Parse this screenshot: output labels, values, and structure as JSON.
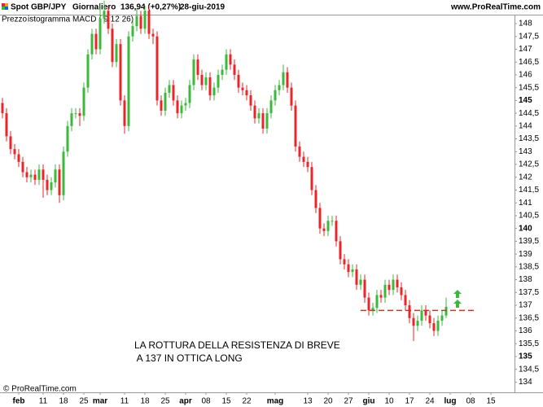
{
  "chart_data": {
    "type": "candlestick",
    "title": "Spot GBP/JPY",
    "timeframe": "Giornaliero",
    "last_price": "136,94 (+0,27%)",
    "date": "28-giu-2019",
    "source": "www.ProRealTime.com",
    "legend": [
      "Prezzo",
      "istogramma MACD ( 9 12 26)"
    ],
    "copyright": "© ProRealTime.com",
    "annotations": [
      "LA ROTTURA DELLA RESISTENZA DI BREVE",
      " A 137 IN OTTICA LONG"
    ],
    "up_color": "#3cb83c",
    "down_color": "#e8252a",
    "resistance": {
      "value": 136.8,
      "color": "#e8252a"
    },
    "xlim": [
      -0.6,
      125.8
    ],
    "xticks": [
      {
        "value": 4,
        "label": "feb"
      },
      {
        "value": 10,
        "label": "11"
      },
      {
        "value": 15,
        "label": "18"
      },
      {
        "value": 20,
        "label": "25"
      },
      {
        "value": 24,
        "label": "mar"
      },
      {
        "value": 30,
        "label": "11"
      },
      {
        "value": 35,
        "label": "18"
      },
      {
        "value": 40,
        "label": "25"
      },
      {
        "value": 45,
        "label": "apr"
      },
      {
        "value": 50,
        "label": "08"
      },
      {
        "value": 55,
        "label": "15"
      },
      {
        "value": 60,
        "label": "22"
      },
      {
        "value": 67,
        "label": "mag"
      },
      {
        "value": 75,
        "label": "13"
      },
      {
        "value": 80,
        "label": "20"
      },
      {
        "value": 85,
        "label": "27"
      },
      {
        "value": 90,
        "label": "giu"
      },
      {
        "value": 95,
        "label": "10"
      },
      {
        "value": 100,
        "label": "17"
      },
      {
        "value": 105,
        "label": "24"
      },
      {
        "value": 110,
        "label": "lug"
      },
      {
        "value": 115,
        "label": "08"
      },
      {
        "value": 120,
        "label": "15"
      }
    ],
    "ylim": [
      133.6,
      148.35
    ],
    "yticks": [
      134,
      {
        "value": 134.5,
        "label": "134,5"
      },
      135,
      {
        "value": 135.5,
        "label": "135,5"
      },
      136,
      {
        "value": 136.5,
        "label": "136,5"
      },
      137,
      {
        "value": 137.5,
        "label": "137,5"
      },
      138,
      {
        "value": 138.5,
        "label": "138,5"
      },
      139,
      {
        "value": 139.5,
        "label": "139,5"
      },
      140,
      {
        "value": 140.5,
        "label": "140,5"
      },
      141,
      {
        "value": 141.5,
        "label": "141,5"
      },
      142,
      {
        "value": 142.5,
        "label": "142,5"
      },
      143,
      {
        "value": 143.5,
        "label": "143,5"
      },
      144,
      {
        "value": 144.5,
        "label": "144,5"
      },
      145,
      {
        "value": 145.5,
        "label": "145,5"
      },
      146,
      {
        "value": 146.5,
        "label": "146,5"
      },
      147,
      {
        "value": 147.5,
        "label": "147,5"
      },
      148
    ],
    "open": [
      144.9,
      144.5,
      143.6,
      143.1,
      142.9,
      142.6,
      142.2,
      142.0,
      142.1,
      141.9,
      142.3,
      141.9,
      141.5,
      141.8,
      142.3,
      141.3,
      143.0,
      144.0,
      144.5,
      144.5,
      144.4,
      145.5,
      146.8,
      147.6,
      147.0,
      148.2,
      148.5,
      147.8,
      146.5,
      147.2,
      145.0,
      144.0,
      147.5,
      147.9,
      148.3,
      147.8,
      148.5,
      147.6,
      147.5,
      145.0,
      144.6,
      145.3,
      145.6,
      145.0,
      144.5,
      144.8,
      144.9,
      145.6,
      146.6,
      146.0,
      145.6,
      145.9,
      145.2,
      145.5,
      146.0,
      146.2,
      146.8,
      146.4,
      146.0,
      145.5,
      145.4,
      145.2,
      144.8,
      144.3,
      144.5,
      143.9,
      144.5,
      145.0,
      145.4,
      145.6,
      146.1,
      145.5,
      144.8,
      143.2,
      142.8,
      142.6,
      142.4,
      141.5,
      140.8,
      140.0,
      139.9,
      140.3,
      140.3,
      139.5,
      138.8,
      138.6,
      138.3,
      138.4,
      137.8,
      138.0,
      137.3,
      136.8,
      136.9,
      137.4,
      137.3,
      137.8,
      137.6,
      138.0,
      137.7,
      137.4,
      137.0,
      136.5,
      136.2,
      136.4,
      136.8,
      136.6,
      136.3,
      136.0,
      136.4,
      136.6
    ],
    "high": [
      145.1,
      144.7,
      143.8,
      143.3,
      143.1,
      142.8,
      142.4,
      142.3,
      142.3,
      142.5,
      142.5,
      142.1,
      142.0,
      142.5,
      142.5,
      143.2,
      144.2,
      144.7,
      144.7,
      144.7,
      145.7,
      147.0,
      147.8,
      147.8,
      148.8,
      148.9,
      148.7,
      148.0,
      147.4,
      147.4,
      145.2,
      147.7,
      148.1,
      148.6,
      148.5,
      148.7,
      148.7,
      147.8,
      147.7,
      145.2,
      145.5,
      145.8,
      145.8,
      145.2,
      145.0,
      145.1,
      145.8,
      146.8,
      146.8,
      146.2,
      146.1,
      146.1,
      145.7,
      146.2,
      146.4,
      147.0,
      147.0,
      146.6,
      146.2,
      145.7,
      145.6,
      145.4,
      145.0,
      144.7,
      144.7,
      144.7,
      145.2,
      145.6,
      145.8,
      146.4,
      146.3,
      145.7,
      145.0,
      143.4,
      143.0,
      142.8,
      142.6,
      141.7,
      141.0,
      140.2,
      140.5,
      140.5,
      140.5,
      139.7,
      139.0,
      138.8,
      138.6,
      138.6,
      138.2,
      138.2,
      137.5,
      137.1,
      137.6,
      137.6,
      138.0,
      138.0,
      138.2,
      138.2,
      137.9,
      137.6,
      137.2,
      136.7,
      136.6,
      137.0,
      137.0,
      136.8,
      136.5,
      136.6,
      136.8,
      137.3
    ],
    "low": [
      144.3,
      143.4,
      142.9,
      142.7,
      142.4,
      142.0,
      141.8,
      141.8,
      141.7,
      141.7,
      141.2,
      141.3,
      141.3,
      141.6,
      141.0,
      141.1,
      142.8,
      143.8,
      144.3,
      144.0,
      144.2,
      145.3,
      146.6,
      146.8,
      146.8,
      148.0,
      147.6,
      146.3,
      146.3,
      144.8,
      143.7,
      143.8,
      147.3,
      147.7,
      147.6,
      147.6,
      147.4,
      147.2,
      144.8,
      144.4,
      144.4,
      145.1,
      144.8,
      144.3,
      144.3,
      144.6,
      144.7,
      145.4,
      145.8,
      145.4,
      145.4,
      145.0,
      145.0,
      145.3,
      145.8,
      146.0,
      146.2,
      145.8,
      145.3,
      145.2,
      145.0,
      144.6,
      144.1,
      144.1,
      143.7,
      143.7,
      144.3,
      144.8,
      145.2,
      145.4,
      145.3,
      144.6,
      143.0,
      142.6,
      142.4,
      142.2,
      141.3,
      140.6,
      139.8,
      139.7,
      139.7,
      140.1,
      139.3,
      138.6,
      138.4,
      138.1,
      138.1,
      137.6,
      137.6,
      137.1,
      136.6,
      136.6,
      136.7,
      137.1,
      137.1,
      137.4,
      137.4,
      137.5,
      137.2,
      136.8,
      136.3,
      135.6,
      136.0,
      136.2,
      136.4,
      136.1,
      135.8,
      135.8,
      136.2,
      136.5
    ],
    "close": [
      144.5,
      143.6,
      143.1,
      142.9,
      142.6,
      142.2,
      142.0,
      142.1,
      141.9,
      142.3,
      141.9,
      141.5,
      141.8,
      142.3,
      141.3,
      143.0,
      144.0,
      144.5,
      144.5,
      144.4,
      145.5,
      146.8,
      147.6,
      147.0,
      148.2,
      148.5,
      147.8,
      146.5,
      147.2,
      145.0,
      144.0,
      147.5,
      147.9,
      148.3,
      147.8,
      148.5,
      147.6,
      147.5,
      145.0,
      144.6,
      145.3,
      145.6,
      145.0,
      144.5,
      144.8,
      144.9,
      145.6,
      146.6,
      146.0,
      145.6,
      145.9,
      145.2,
      145.5,
      146.0,
      146.2,
      146.8,
      146.4,
      146.0,
      145.5,
      145.4,
      145.2,
      144.8,
      144.3,
      144.5,
      143.9,
      144.5,
      145.0,
      145.4,
      145.6,
      146.1,
      145.5,
      144.8,
      143.2,
      142.8,
      142.6,
      142.4,
      141.5,
      140.8,
      140.0,
      139.9,
      140.3,
      140.3,
      139.5,
      138.8,
      138.6,
      138.3,
      138.4,
      137.8,
      138.0,
      137.3,
      136.8,
      136.9,
      137.4,
      137.3,
      137.8,
      137.6,
      138.0,
      137.7,
      137.4,
      137.0,
      136.5,
      136.2,
      136.4,
      136.8,
      136.6,
      136.3,
      136.0,
      136.4,
      136.6,
      136.94
    ]
  }
}
